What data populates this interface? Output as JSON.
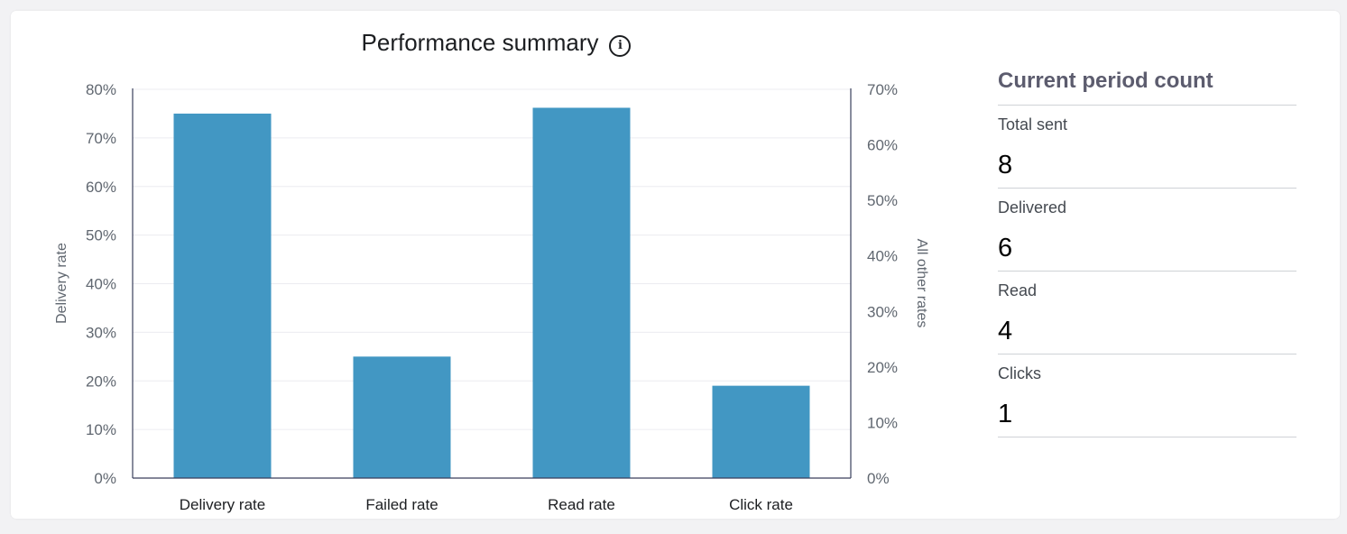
{
  "title": "Performance summary",
  "info_icon": "i",
  "chart_data": {
    "type": "bar",
    "categories": [
      "Delivery rate",
      "Failed rate",
      "Read rate",
      "Click rate"
    ],
    "values": [
      75,
      25,
      76.2,
      19
    ],
    "ylabel": "Delivery rate",
    "ylabel_right": "All other rates",
    "ylim": [
      0,
      80
    ],
    "ylim_right": [
      0,
      70
    ],
    "yticks_left": [
      "0%",
      "10%",
      "20%",
      "30%",
      "40%",
      "50%",
      "60%",
      "70%",
      "80%"
    ],
    "yticks_right": [
      "0%",
      "10%",
      "20%",
      "30%",
      "40%",
      "50%",
      "60%",
      "70%"
    ],
    "bar_color": "#4297c3",
    "grid": true
  },
  "side": {
    "title": "Current period count",
    "metrics": [
      {
        "label": "Total sent",
        "value": "8"
      },
      {
        "label": "Delivered",
        "value": "6"
      },
      {
        "label": "Read",
        "value": "4"
      },
      {
        "label": "Clicks",
        "value": "1"
      }
    ]
  }
}
